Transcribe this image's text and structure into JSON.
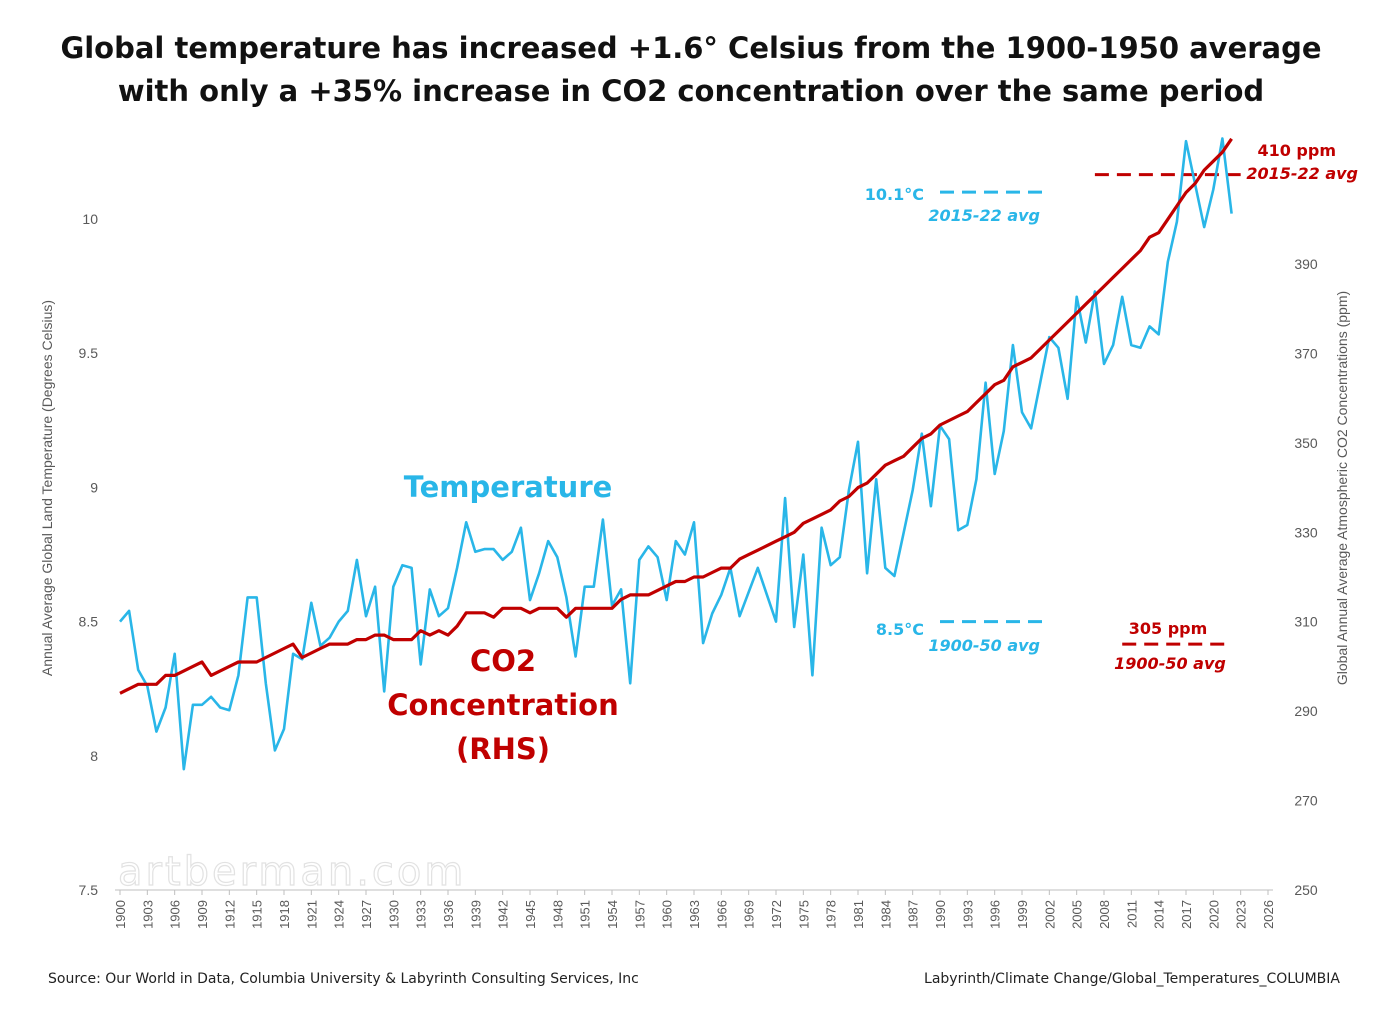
{
  "title_lines": [
    "Global temperature has increased +1.6° Celsius from the 1900-1950 average",
    "with only a +35% increase in CO2 concentration over the same period"
  ],
  "footer_source": "Source:  Our World in Data, Columbia University & Labyrinth Consulting Services, Inc",
  "footer_path": "Labyrinth/Climate Change/Global_Temperatures_COLUMBIA",
  "watermark": "artberman.com",
  "colors": {
    "temperature": "#29b6e8",
    "co2": "#c00000",
    "axis": "#bfbfbf",
    "tick_text": "#595959"
  },
  "chart_data": {
    "type": "line",
    "title": "Global temperature has increased +1.6° Celsius from the 1900-1950 average with only a +35% increase in CO2 concentration over the same period",
    "x": [
      1900,
      1901,
      1902,
      1903,
      1904,
      1905,
      1906,
      1907,
      1908,
      1909,
      1910,
      1911,
      1912,
      1913,
      1914,
      1915,
      1916,
      1917,
      1918,
      1919,
      1920,
      1921,
      1922,
      1923,
      1924,
      1925,
      1926,
      1927,
      1928,
      1929,
      1930,
      1931,
      1932,
      1933,
      1934,
      1935,
      1936,
      1937,
      1938,
      1939,
      1940,
      1941,
      1942,
      1943,
      1944,
      1945,
      1946,
      1947,
      1948,
      1949,
      1950,
      1951,
      1952,
      1953,
      1954,
      1955,
      1956,
      1957,
      1958,
      1959,
      1960,
      1961,
      1962,
      1963,
      1964,
      1965,
      1966,
      1967,
      1968,
      1969,
      1970,
      1971,
      1972,
      1973,
      1974,
      1975,
      1976,
      1977,
      1978,
      1979,
      1980,
      1981,
      1982,
      1983,
      1984,
      1985,
      1986,
      1987,
      1988,
      1989,
      1990,
      1991,
      1992,
      1993,
      1994,
      1995,
      1996,
      1997,
      1998,
      1999,
      2000,
      2001,
      2002,
      2003,
      2004,
      2005,
      2006,
      2007,
      2008,
      2009,
      2010,
      2011,
      2012,
      2013,
      2014,
      2015,
      2016,
      2017,
      2018,
      2019,
      2020,
      2021,
      2022
    ],
    "xlim": [
      1900,
      2026
    ],
    "x_ticks": [
      1900,
      1903,
      1906,
      1909,
      1912,
      1915,
      1918,
      1921,
      1924,
      1927,
      1930,
      1933,
      1936,
      1939,
      1942,
      1945,
      1948,
      1951,
      1954,
      1957,
      1960,
      1963,
      1966,
      1969,
      1972,
      1975,
      1978,
      1981,
      1984,
      1987,
      1990,
      1993,
      1996,
      1999,
      2002,
      2005,
      2008,
      2011,
      2014,
      2017,
      2020,
      2023,
      2026
    ],
    "y_left": {
      "label": "Annual Average Global Land Temperature (Degrees Celsius)",
      "lim": [
        7.5,
        10.5
      ],
      "ticks": [
        7.5,
        8,
        8.5,
        9,
        9.5,
        10
      ]
    },
    "y_right": {
      "label": "Global Annual Average Atmospheric CO2  Concentrations (ppm)",
      "lim": [
        250,
        420
      ],
      "ticks": [
        250,
        270,
        290,
        310,
        330,
        350,
        370,
        390
      ]
    },
    "series": [
      {
        "name": "Temperature",
        "axis": "left",
        "color": "#29b6e8",
        "values": [
          8.5,
          8.54,
          8.32,
          8.26,
          8.09,
          8.18,
          8.38,
          7.95,
          8.19,
          8.19,
          8.22,
          8.18,
          8.17,
          8.3,
          8.59,
          8.59,
          8.27,
          8.02,
          8.1,
          8.38,
          8.36,
          8.57,
          8.41,
          8.44,
          8.5,
          8.54,
          8.73,
          8.52,
          8.63,
          8.24,
          8.63,
          8.71,
          8.7,
          8.34,
          8.62,
          8.52,
          8.55,
          8.7,
          8.87,
          8.76,
          8.77,
          8.77,
          8.73,
          8.76,
          8.85,
          8.58,
          8.68,
          8.8,
          8.74,
          8.59,
          8.37,
          8.63,
          8.63,
          8.88,
          8.56,
          8.62,
          8.27,
          8.73,
          8.78,
          8.74,
          8.58,
          8.8,
          8.75,
          8.87,
          8.42,
          8.53,
          8.6,
          8.7,
          8.52,
          8.61,
          8.7,
          8.6,
          8.5,
          8.96,
          8.48,
          8.75,
          8.3,
          8.85,
          8.71,
          8.74,
          8.99,
          9.17,
          8.68,
          9.03,
          8.7,
          8.67,
          8.83,
          8.99,
          9.2,
          8.93,
          9.23,
          9.18,
          8.84,
          8.86,
          9.03,
          9.39,
          9.05,
          9.21,
          9.53,
          9.28,
          9.22,
          9.39,
          9.56,
          9.52,
          9.33,
          9.71,
          9.54,
          9.73,
          9.46,
          9.53,
          9.71,
          9.53,
          9.52,
          9.6,
          9.57,
          9.84,
          9.99,
          10.29,
          10.13,
          9.97,
          10.11,
          10.3,
          10.02
        ]
      },
      {
        "name": "CO2 Concentration (RHS)",
        "axis": "right",
        "color": "#c00000",
        "values": [
          294,
          295,
          296,
          296,
          296,
          298,
          298,
          299,
          300,
          301,
          298,
          299,
          300,
          301,
          301,
          301,
          302,
          303,
          304,
          305,
          302,
          303,
          304,
          305,
          305,
          305,
          306,
          306,
          307,
          307,
          306,
          306,
          306,
          308,
          307,
          308,
          307,
          309,
          312,
          312,
          312,
          311,
          313,
          313,
          313,
          312,
          313,
          313,
          313,
          311,
          313,
          313,
          313,
          313,
          313,
          315,
          316,
          316,
          316,
          317,
          318,
          319,
          319,
          320,
          320,
          321,
          322,
          322,
          324,
          325,
          326,
          327,
          328,
          329,
          330,
          332,
          333,
          334,
          335,
          337,
          338,
          340,
          341,
          343,
          345,
          346,
          347,
          349,
          351,
          352,
          354,
          355,
          356,
          357,
          359,
          361,
          363,
          364,
          367,
          368,
          369,
          371,
          373,
          375,
          377,
          379,
          381,
          383,
          385,
          387,
          389,
          391,
          393,
          396,
          397,
          400,
          403,
          406,
          408,
          411,
          413,
          415,
          418
        ]
      }
    ],
    "annotations": [
      {
        "text": "Temperature",
        "color": "#29b6e8"
      },
      {
        "text": "CO2",
        "color": "#c00000"
      },
      {
        "text": "Concentration",
        "color": "#c00000"
      },
      {
        "text": "(RHS)",
        "color": "#c00000"
      },
      {
        "text": "10.1°C",
        "color": "#29b6e8"
      },
      {
        "text": "2015-22 avg",
        "color": "#29b6e8"
      },
      {
        "text": "8.5°C",
        "color": "#29b6e8"
      },
      {
        "text": "1900-50 avg",
        "color": "#29b6e8"
      },
      {
        "text": "410 ppm",
        "color": "#c00000"
      },
      {
        "text": "2015-22 avg",
        "color": "#c00000"
      },
      {
        "text": "305 ppm",
        "color": "#c00000"
      },
      {
        "text": "1900-50 avg",
        "color": "#c00000"
      }
    ],
    "reference_lines": [
      {
        "axis": "left",
        "value": 10.1,
        "color": "#29b6e8",
        "style": "dashed",
        "x_range": [
          1990,
          2002
        ]
      },
      {
        "axis": "left",
        "value": 8.5,
        "color": "#29b6e8",
        "style": "dashed",
        "x_range": [
          1990,
          2002
        ]
      },
      {
        "axis": "right",
        "value": 410,
        "color": "#c00000",
        "style": "dashed",
        "x_range": [
          2007,
          2023
        ]
      },
      {
        "axis": "right",
        "value": 305,
        "color": "#c00000",
        "style": "dashed",
        "x_range": [
          2010,
          2022
        ]
      }
    ],
    "grid": false,
    "legend": "none"
  }
}
